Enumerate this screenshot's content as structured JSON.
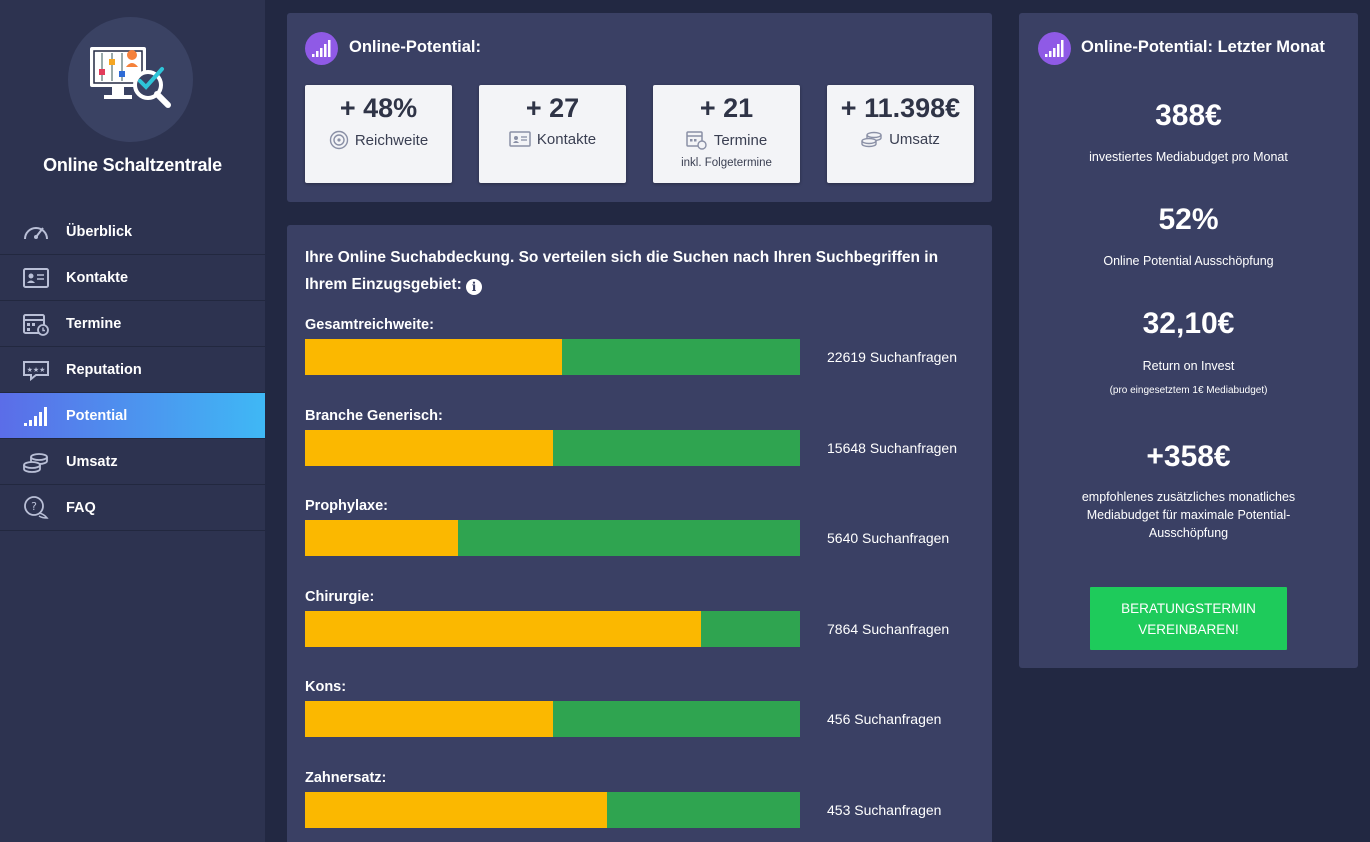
{
  "sidebar": {
    "brand": "Online Schaltzentrale",
    "items": [
      {
        "label": "Überblick",
        "icon": "speedometer-icon"
      },
      {
        "label": "Kontakte",
        "icon": "contact-card-icon"
      },
      {
        "label": "Termine",
        "icon": "calendar-clock-icon"
      },
      {
        "label": "Reputation",
        "icon": "rating-stars-icon"
      },
      {
        "label": "Potential",
        "icon": "signal-bars-icon"
      },
      {
        "label": "Umsatz",
        "icon": "coins-icon"
      },
      {
        "label": "FAQ",
        "icon": "question-chat-icon"
      }
    ]
  },
  "overview": {
    "title": "Online-Potential:",
    "kpis": [
      {
        "value": "+ 48%",
        "label": "Reichweite",
        "sub": ""
      },
      {
        "value": "+ 27",
        "label": "Kontakte",
        "sub": ""
      },
      {
        "value": "+ 21",
        "label": "Termine",
        "sub": "inkl. Folgetermine"
      },
      {
        "value": "+ 11.398€",
        "label": "Umsatz",
        "sub": ""
      }
    ]
  },
  "coverage": {
    "title": "Ihre Online Suchabdeckung. So verteilen sich die Suchen nach Ihren Suchbegriffen in Ihrem Einzugsgebiet:",
    "info": "i",
    "rows": [
      {
        "label": "Gesamtreichweite:",
        "value": "22619 Suchanfragen",
        "fill": 0.52
      },
      {
        "label": "Branche Generisch:",
        "value": "15648 Suchanfragen",
        "fill": 0.5
      },
      {
        "label": "Prophylaxe:",
        "value": "5640 Suchanfragen",
        "fill": 0.31
      },
      {
        "label": "Chirurgie:",
        "value": "7864 Suchanfragen",
        "fill": 0.8
      },
      {
        "label": "Kons:",
        "value": "456 Suchanfragen",
        "fill": 0.5
      },
      {
        "label": "Zahnersatz:",
        "value": "453 Suchanfragen",
        "fill": 0.61
      }
    ]
  },
  "last_month": {
    "title": "Online-Potential: Letzter Monat",
    "budget_value": "388€",
    "budget_label": "investiertes Mediabudget pro Monat",
    "usage_value": "52%",
    "usage_label": "Online Potential Ausschöpfung",
    "roi_value": "32,10€",
    "roi_label": "Return on Invest",
    "roi_note": "(pro eingesetztem 1€ Mediabudget)",
    "extra_value": "+358€",
    "extra_label": "empfohlenes zusätzliches monatliches Mediabudget für maximale Potential-Ausschöpfung",
    "cta_line1": "BERATUNGSTERMIN",
    "cta_line2": "VEREINBAREN!"
  },
  "colors": {
    "background": "#222842",
    "sidebar": "#2d3350",
    "panel": "#3a4064",
    "bar_yellow": "#fbb800",
    "bar_green": "#2fa450",
    "cta_green": "#1ecb5b",
    "badge_purple": "#8f5ae6"
  }
}
